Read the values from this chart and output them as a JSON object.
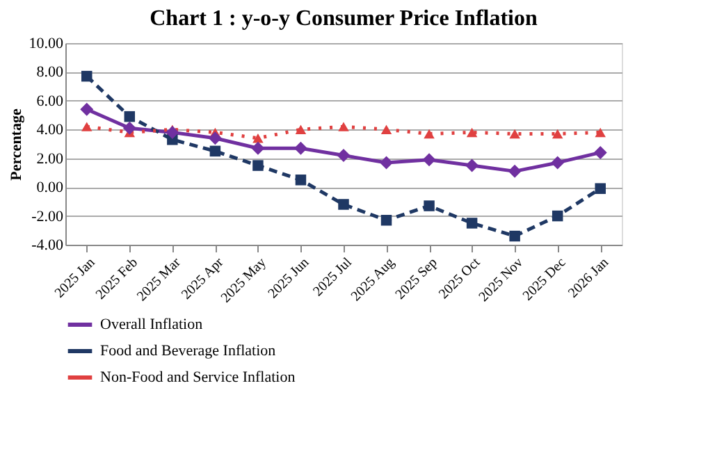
{
  "chart_data": {
    "type": "line",
    "title": "Chart 1 : y-o-y Consumer Price Inflation",
    "ylabel": "Percentage",
    "categories": [
      "2025 Jan",
      "2025 Feb",
      "2025 Mar",
      "2025 Apr",
      "2025 May",
      "2025 Jun",
      "2025 Jul",
      "2025 Aug",
      "2025 Sep",
      "2025 Oct",
      "2025 Nov",
      "2025 Dec",
      "2026 Jan"
    ],
    "ylim": [
      -4,
      10
    ],
    "yticks": [
      {
        "value": -4,
        "label": "-4.00"
      },
      {
        "value": -2,
        "label": "-2.00"
      },
      {
        "value": 0,
        "label": "0.00"
      },
      {
        "value": 2,
        "label": "2.00"
      },
      {
        "value": 4,
        "label": "4.00"
      },
      {
        "value": 6,
        "label": "6.00"
      },
      {
        "value": 8,
        "label": "8.00"
      },
      {
        "value": 10,
        "label": "10.00"
      }
    ],
    "grid": "y",
    "legend": "bottom",
    "series": [
      {
        "name": "Overall Inflation",
        "color": "#7030a0",
        "marker": "diamond",
        "line_style": "solid",
        "values": [
          5.4,
          4.1,
          3.8,
          3.4,
          2.7,
          2.7,
          2.2,
          1.7,
          1.9,
          1.5,
          1.1,
          1.7,
          2.4
        ]
      },
      {
        "name": "Food and Beverage Inflation",
        "color": "#1f3864",
        "marker": "square",
        "line_style": "dashed",
        "values": [
          7.7,
          4.9,
          3.3,
          2.5,
          1.5,
          0.5,
          -1.2,
          -2.3,
          -1.3,
          -2.5,
          -3.4,
          -2.0,
          -0.1
        ]
      },
      {
        "name": "Non-Food and Service Inflation",
        "color": "#e04040",
        "marker": "triangle",
        "line_style": "dotted",
        "values": [
          4.2,
          3.8,
          4.0,
          3.8,
          3.4,
          4.0,
          4.2,
          4.0,
          3.7,
          3.8,
          3.7,
          3.7,
          3.8
        ]
      }
    ]
  }
}
